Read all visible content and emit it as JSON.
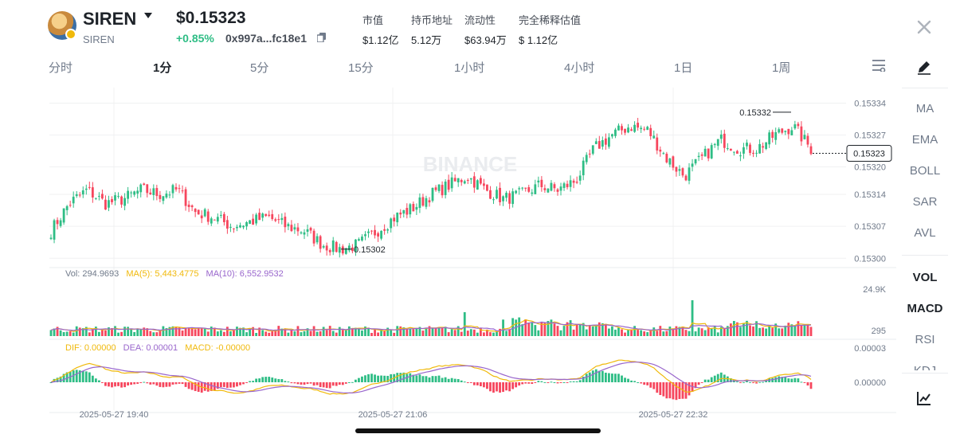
{
  "header": {
    "symbol": "SIREN",
    "symbol_sub": "SIREN",
    "price": "$0.15323",
    "change": "+0.85%",
    "address": "0x997a...fc18e1",
    "stats": [
      {
        "label": "市值",
        "value": "$1.12亿"
      },
      {
        "label": "持币地址",
        "value": "5.12万"
      },
      {
        "label": "流动性",
        "value": "$63.94万"
      },
      {
        "label": "完全稀释估值",
        "value": "$ 1.12亿"
      }
    ]
  },
  "tabs": [
    "分时",
    "1分",
    "5分",
    "15分",
    "1小时",
    "4小时",
    "1日",
    "1周"
  ],
  "active_tab": "1分",
  "sidebar": {
    "indicators": [
      "MA",
      "EMA",
      "BOLL",
      "SAR",
      "AVL"
    ],
    "sub_indicators": [
      "VOL",
      "MACD",
      "RSI",
      "KDJ"
    ]
  },
  "colors": {
    "up": "#2ebd85",
    "down": "#f6465d",
    "ma5": "#f0b90b",
    "ma10": "#9966cc",
    "line": "#1e2329"
  },
  "watermark": "BINANCE",
  "chart_data": {
    "type": "candlestick",
    "price_axis": [
      "0.15334",
      "0.15327",
      "0.15320",
      "0.15314",
      "0.15307",
      "0.15300"
    ],
    "y_range": [
      0.15299,
      0.15336
    ],
    "last_price": "0.15323",
    "high_label": "0.15332",
    "low_label": "0.15302",
    "x_labels": [
      "2025-05-27 19:40",
      "2025-05-27 21:06",
      "2025-05-27 22:32"
    ],
    "close_path": [
      0.15306,
      0.15312,
      0.15315,
      0.15312,
      0.15313,
      0.15315,
      0.15314,
      0.15315,
      0.1531,
      0.15309,
      0.15307,
      0.15308,
      0.15309,
      0.15307,
      0.15306,
      0.15303,
      0.15302,
      0.15303,
      0.15306,
      0.15309,
      0.15311,
      0.15314,
      0.15316,
      0.15318,
      0.15315,
      0.15313,
      0.15314,
      0.15316,
      0.15315,
      0.15317,
      0.15324,
      0.15327,
      0.15329,
      0.15328,
      0.15322,
      0.15318,
      0.15322,
      0.15326,
      0.15324,
      0.15324,
      0.15327,
      0.15329,
      0.15324
    ],
    "volume": {
      "label": "Vol: 294.9693",
      "ma5": "MA(5): 5,443.4775",
      "ma10": "MA(10): 6,552.9532",
      "axis": [
        "24.9K",
        "295"
      ]
    },
    "macd": {
      "dif": "DIF: 0.00000",
      "dea": "DEA: 0.00001",
      "macd": "MACD: -0.00000",
      "axis": [
        "0.00003",
        "0.00000"
      ]
    }
  }
}
